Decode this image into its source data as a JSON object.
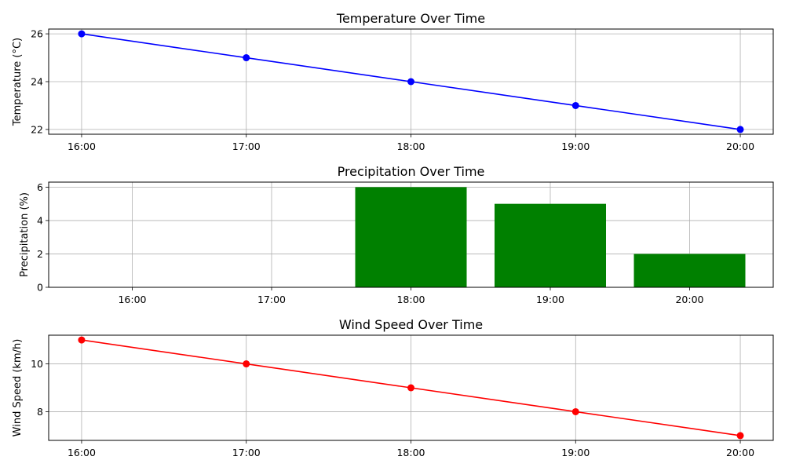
{
  "chart_data": [
    {
      "type": "line",
      "title": "Temperature Over Time",
      "xlabel": "",
      "ylabel": "Temperature (°C)",
      "categories": [
        "16:00",
        "17:00",
        "18:00",
        "19:00",
        "20:00"
      ],
      "values": [
        26,
        25,
        24,
        23,
        22
      ],
      "ylim": [
        21.8,
        26.2
      ],
      "yticks": [
        22,
        24,
        26
      ],
      "color": "#0000ff",
      "marker": "circle",
      "grid": true
    },
    {
      "type": "bar",
      "title": "Precipitation Over Time",
      "xlabel": "",
      "ylabel": "Precipitation (%)",
      "categories": [
        "16:00",
        "17:00",
        "18:00",
        "19:00",
        "20:00"
      ],
      "values": [
        0,
        0,
        6,
        5,
        2
      ],
      "ylim": [
        0,
        6.3
      ],
      "yticks": [
        0,
        2,
        4,
        6
      ],
      "color": "#008000",
      "grid": true
    },
    {
      "type": "line",
      "title": "Wind Speed Over Time",
      "xlabel": "",
      "ylabel": "Wind Speed (km/h)",
      "categories": [
        "16:00",
        "17:00",
        "18:00",
        "19:00",
        "20:00"
      ],
      "values": [
        11,
        10,
        9,
        8,
        7
      ],
      "ylim": [
        6.8,
        11.2
      ],
      "yticks": [
        8,
        10
      ],
      "color": "#ff0000",
      "marker": "circle",
      "grid": true
    }
  ]
}
